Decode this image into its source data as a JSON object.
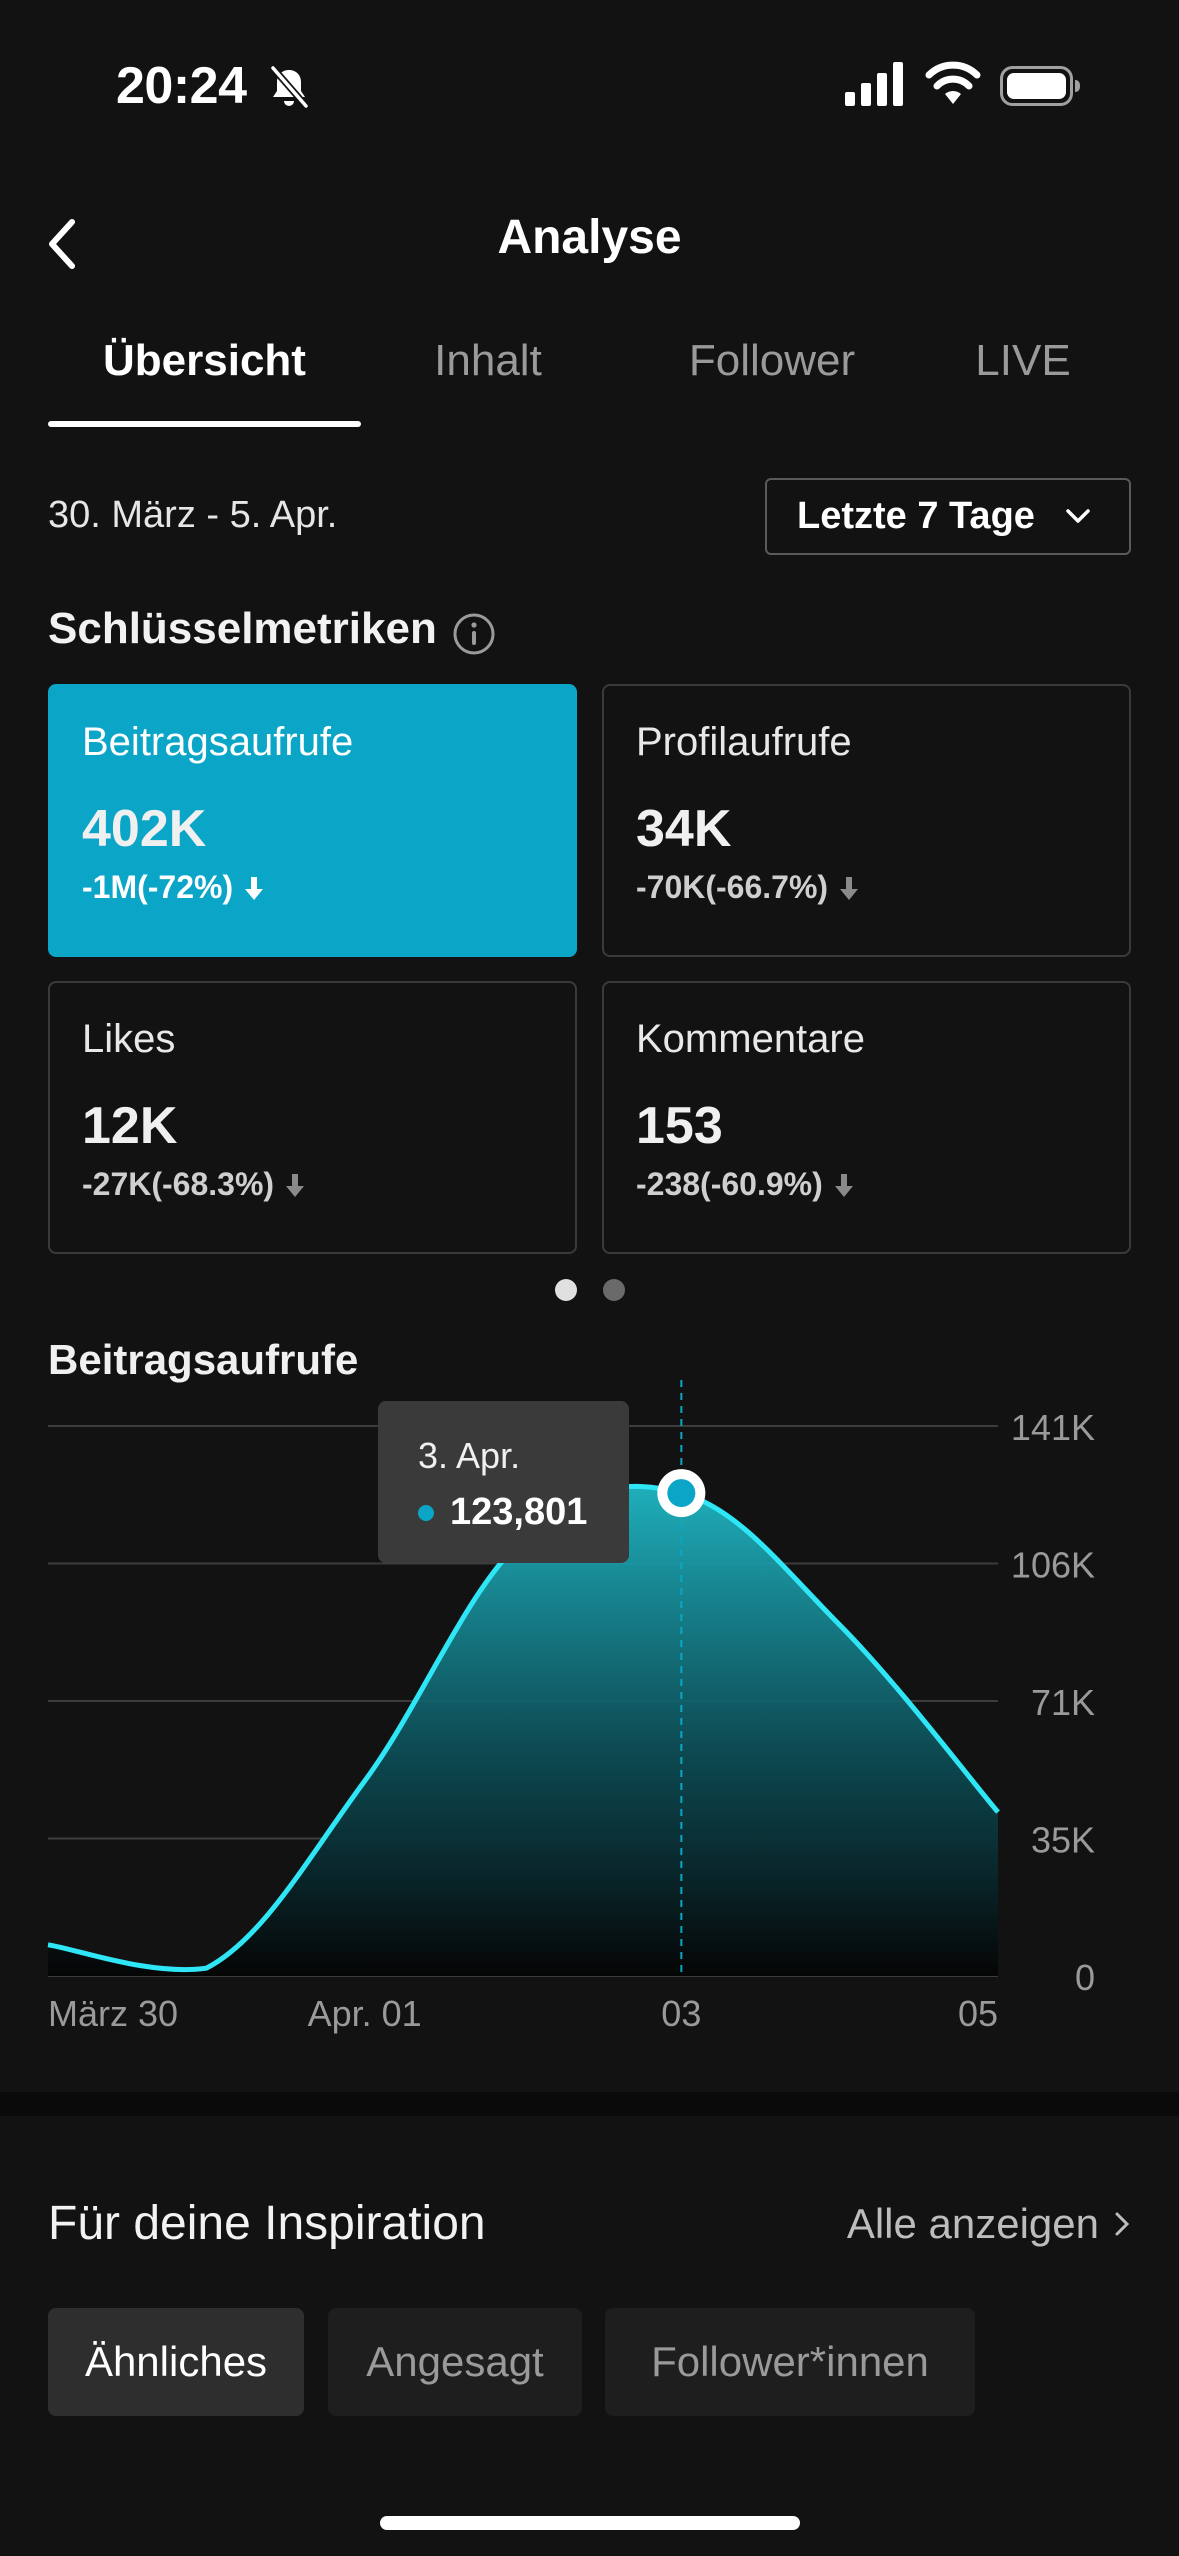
{
  "status_bar": {
    "time": "20:24",
    "icons": [
      "bell-slash-icon",
      "signal-icon",
      "wifi-icon",
      "battery-icon"
    ]
  },
  "header": {
    "title": "Analyse",
    "back_icon": "chevron-left-icon"
  },
  "tabs": [
    {
      "label": "Übersicht",
      "active": true
    },
    {
      "label": "Inhalt",
      "active": false
    },
    {
      "label": "Follower",
      "active": false
    },
    {
      "label": "LIVE",
      "active": false
    }
  ],
  "date_range": "30. März - 5. Apr.",
  "range_select": {
    "value": "Letzte 7 Tage",
    "icon": "chevron-down-icon"
  },
  "key_metrics": {
    "title": "Schlüsselmetriken",
    "info_icon": "info-icon",
    "cards": [
      {
        "label": "Beitragsaufrufe",
        "value": "402K",
        "change": "-1M(-72%)",
        "selected": true
      },
      {
        "label": "Profilaufrufe",
        "value": "34K",
        "change": "-70K(-66.7%)",
        "selected": false
      },
      {
        "label": "Likes",
        "value": "12K",
        "change": "-27K(-68.3%)",
        "selected": false
      },
      {
        "label": "Kommentare",
        "value": "153",
        "change": "-238(-60.9%)",
        "selected": false
      }
    ],
    "page_indicator": {
      "pages": 2,
      "current": 1
    }
  },
  "chart_title": "Beitragsaufrufe",
  "tooltip": {
    "date": "3. Apr.",
    "value": "123,801"
  },
  "colors": {
    "accent": "#0ba5c8",
    "line": "#2ee6f5",
    "background": "#121212"
  },
  "chart_data": {
    "type": "area",
    "title": "Beitragsaufrufe",
    "x": [
      "2024-03-30",
      "2024-03-31",
      "2024-04-01",
      "2024-04-02",
      "2024-04-03",
      "2024-04-04",
      "2024-04-05"
    ],
    "xticks": [
      "März 30",
      "Apr. 01",
      "03",
      "05"
    ],
    "yticks": [
      "0",
      "35K",
      "71K",
      "106K",
      "141K"
    ],
    "ylim": [
      0,
      141000
    ],
    "series": [
      {
        "values": [
          8000,
          2000,
          50000,
          112000,
          123801,
          90000,
          42000
        ]
      }
    ],
    "highlight_index": 4,
    "grid": true
  },
  "inspiration": {
    "title": "Für deine Inspiration",
    "show_all": "Alle anzeigen",
    "chips": [
      {
        "label": "Ähnliches",
        "active": true
      },
      {
        "label": "Angesagt",
        "active": false
      },
      {
        "label": "Follower*innen",
        "active": false
      }
    ]
  }
}
